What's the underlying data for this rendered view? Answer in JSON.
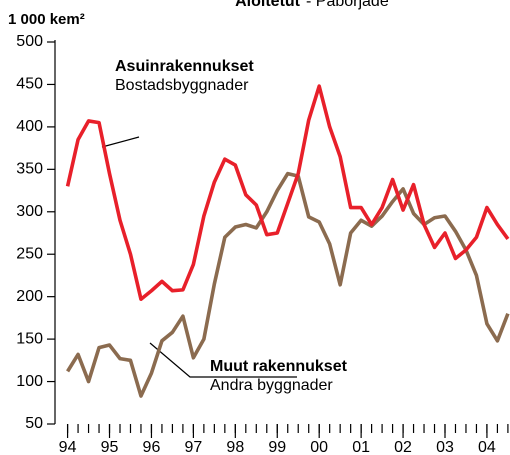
{
  "chart_data": {
    "type": "line",
    "title": "Aloitetut",
    "subtitle": "- Påbörjade",
    "y_label": "1 000 kem²",
    "x": [
      94,
      94.25,
      94.5,
      94.75,
      95,
      95.25,
      95.5,
      95.75,
      96,
      96.25,
      96.5,
      96.75,
      97,
      97.25,
      97.5,
      97.75,
      98,
      98.25,
      98.5,
      98.75,
      99,
      99.25,
      99.5,
      99.75,
      100,
      100.25,
      100.5,
      100.75,
      101,
      101.25,
      101.5,
      101.75,
      102,
      102.25,
      102.5,
      102.75,
      103,
      103.25,
      103.5,
      103.75,
      104,
      104.25,
      104.5
    ],
    "series": [
      {
        "color": "#e8202a",
        "values": [
          330,
          385,
          407,
          405,
          345,
          290,
          250,
          197,
          207,
          218,
          207,
          208,
          238,
          295,
          335,
          362,
          355,
          320,
          308,
          273,
          275,
          310,
          345,
          408,
          448,
          400,
          365,
          305,
          305,
          285,
          305,
          338,
          302,
          332,
          285,
          258,
          275,
          245,
          255,
          270,
          305,
          285,
          268
        ]
      },
      {
        "color": "#8b6b4f",
        "values": [
          112,
          132,
          100,
          140,
          143,
          127,
          125,
          83,
          110,
          148,
          158,
          177,
          128,
          150,
          215,
          270,
          282,
          285,
          281,
          300,
          325,
          345,
          342,
          294,
          288,
          262,
          214,
          275,
          290,
          283,
          295,
          312,
          327,
          298,
          285,
          293,
          295,
          277,
          255,
          225,
          168,
          148,
          180
        ]
      }
    ],
    "annotations": [
      {
        "title": "Asuinrakennukset",
        "text": "Bostadsbyggnader"
      },
      {
        "title": "Muut rakennukset",
        "text": "Andra byggnader"
      }
    ],
    "xlim": [
      93.7,
      104.55
    ],
    "xticks": [
      94,
      95,
      96,
      97,
      98,
      99,
      {
        "value": 100,
        "label": "00"
      },
      {
        "value": 101,
        "label": "01"
      },
      {
        "value": 102,
        "label": "02"
      },
      {
        "value": 103,
        "label": "03"
      },
      {
        "value": 104,
        "label": "04"
      }
    ],
    "ylim": [
      50,
      500
    ],
    "yticks": [
      50,
      100,
      150,
      200,
      250,
      300,
      350,
      400,
      450,
      500
    ],
    "grid": false
  }
}
